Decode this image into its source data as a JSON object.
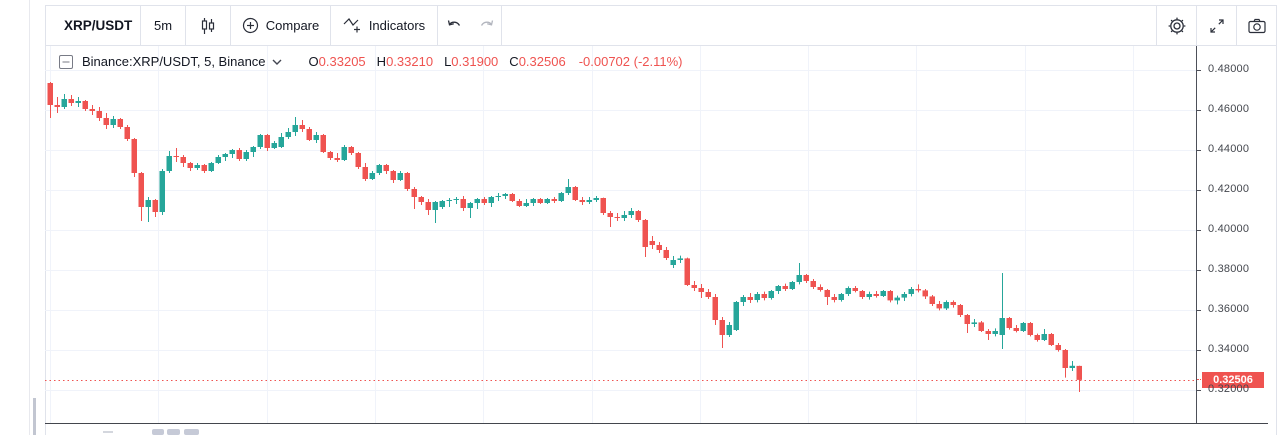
{
  "toolbar": {
    "symbol": "XRP/USDT",
    "interval": "5m",
    "compare_label": "Compare",
    "indicators_label": "Indicators"
  },
  "legend": {
    "title": "Binance:XRP/USDT, 5, Binance",
    "ohlc": [
      {
        "label": "O",
        "value": "0.33205"
      },
      {
        "label": "H",
        "value": "0.33210"
      },
      {
        "label": "L",
        "value": "0.31900"
      },
      {
        "label": "C",
        "value": "0.32506"
      }
    ],
    "change": "-0.00702 (-2.11%)"
  },
  "price_axis": {
    "labels": [
      "0.48000",
      "0.46000",
      "0.44000",
      "0.42000",
      "0.40000",
      "0.38000",
      "0.36000",
      "0.34000",
      "0.32000"
    ],
    "label_prices": [
      0.48,
      0.46,
      0.44,
      0.42,
      0.4,
      0.38,
      0.36,
      0.34,
      0.32
    ],
    "current_price_label": "0.32506"
  },
  "colors": {
    "up": "#26a69a",
    "down": "#ef5350",
    "accent_red": "#ef5350",
    "grid": "#f0f3fa",
    "border": "#e0e3eb",
    "axis_line": "#4d5059",
    "text_dark": "#131722",
    "text_gray": "#44474e"
  },
  "chart_data": {
    "type": "candlestick",
    "symbol": "Binance:XRP/USDT",
    "exchange": "Binance",
    "interval_minutes": 5,
    "last_price": 0.32506,
    "y_axis_range": [
      0.3155,
      0.4925
    ],
    "gridline_prices": [
      0.48,
      0.46,
      0.44,
      0.42,
      0.4,
      0.38,
      0.36,
      0.34,
      0.32
    ],
    "legend_ohlc": {
      "open": 0.33205,
      "high": 0.3321,
      "low": 0.319,
      "close": 0.32506,
      "change": -0.00702,
      "change_pct": -2.11
    },
    "candles": [
      [
        0.4735,
        0.474,
        0.456,
        0.4625
      ],
      [
        0.4625,
        0.4665,
        0.4585,
        0.4615
      ],
      [
        0.4615,
        0.468,
        0.4605,
        0.4655
      ],
      [
        0.4655,
        0.4675,
        0.462,
        0.4635
      ],
      [
        0.4635,
        0.4665,
        0.4615,
        0.4645
      ],
      [
        0.4645,
        0.465,
        0.4595,
        0.4605
      ],
      [
        0.4605,
        0.4625,
        0.4575,
        0.4595
      ],
      [
        0.4595,
        0.4615,
        0.4545,
        0.456
      ],
      [
        0.456,
        0.4585,
        0.4505,
        0.4525
      ],
      [
        0.4525,
        0.457,
        0.451,
        0.4555
      ],
      [
        0.4555,
        0.456,
        0.4505,
        0.4515
      ],
      [
        0.4515,
        0.4525,
        0.4445,
        0.4455
      ],
      [
        0.4455,
        0.446,
        0.4265,
        0.4285
      ],
      [
        0.4285,
        0.429,
        0.4045,
        0.4115
      ],
      [
        0.4115,
        0.4165,
        0.404,
        0.415
      ],
      [
        0.415,
        0.4155,
        0.4065,
        0.409
      ],
      [
        0.409,
        0.4305,
        0.4075,
        0.4295
      ],
      [
        0.4295,
        0.4395,
        0.4285,
        0.437
      ],
      [
        0.437,
        0.441,
        0.434,
        0.4365
      ],
      [
        0.4365,
        0.4375,
        0.4315,
        0.4335
      ],
      [
        0.4335,
        0.434,
        0.4295,
        0.431
      ],
      [
        0.431,
        0.4335,
        0.43,
        0.4325
      ],
      [
        0.4325,
        0.433,
        0.4285,
        0.4295
      ],
      [
        0.4295,
        0.434,
        0.429,
        0.4335
      ],
      [
        0.4335,
        0.4375,
        0.433,
        0.4365
      ],
      [
        0.4365,
        0.4385,
        0.4345,
        0.438
      ],
      [
        0.438,
        0.4405,
        0.436,
        0.44
      ],
      [
        0.44,
        0.441,
        0.4345,
        0.4355
      ],
      [
        0.4355,
        0.44,
        0.4345,
        0.439
      ],
      [
        0.439,
        0.442,
        0.4365,
        0.4415
      ],
      [
        0.4415,
        0.448,
        0.4405,
        0.4475
      ],
      [
        0.4475,
        0.448,
        0.4395,
        0.441
      ],
      [
        0.441,
        0.4445,
        0.4405,
        0.4435
      ],
      [
        0.4415,
        0.4485,
        0.441,
        0.4465
      ],
      [
        0.4465,
        0.451,
        0.4455,
        0.449
      ],
      [
        0.449,
        0.4565,
        0.447,
        0.4525
      ],
      [
        0.4525,
        0.455,
        0.449,
        0.4505
      ],
      [
        0.4505,
        0.4515,
        0.4445,
        0.445
      ],
      [
        0.445,
        0.449,
        0.4435,
        0.4475
      ],
      [
        0.4475,
        0.448,
        0.4385,
        0.439
      ],
      [
        0.439,
        0.4395,
        0.435,
        0.436
      ],
      [
        0.436,
        0.4385,
        0.434,
        0.435
      ],
      [
        0.435,
        0.4425,
        0.4345,
        0.4415
      ],
      [
        0.4415,
        0.442,
        0.4375,
        0.4385
      ],
      [
        0.4385,
        0.439,
        0.4305,
        0.4315
      ],
      [
        0.4315,
        0.4335,
        0.4245,
        0.4255
      ],
      [
        0.4255,
        0.4295,
        0.425,
        0.4285
      ],
      [
        0.4285,
        0.433,
        0.4275,
        0.4325
      ],
      [
        0.4325,
        0.433,
        0.428,
        0.4295
      ],
      [
        0.4295,
        0.43,
        0.4235,
        0.425
      ],
      [
        0.425,
        0.4295,
        0.4245,
        0.4285
      ],
      [
        0.4285,
        0.429,
        0.4195,
        0.4205
      ],
      [
        0.4205,
        0.4215,
        0.4105,
        0.4165
      ],
      [
        0.4165,
        0.417,
        0.4125,
        0.414
      ],
      [
        0.414,
        0.4155,
        0.4075,
        0.41
      ],
      [
        0.41,
        0.4145,
        0.4035,
        0.414
      ],
      [
        0.4115,
        0.415,
        0.4105,
        0.4145
      ],
      [
        0.4145,
        0.416,
        0.4115,
        0.415
      ],
      [
        0.415,
        0.4165,
        0.413,
        0.4155
      ],
      [
        0.4155,
        0.417,
        0.4095,
        0.411
      ],
      [
        0.411,
        0.414,
        0.406,
        0.4135
      ],
      [
        0.4135,
        0.416,
        0.4105,
        0.4155
      ],
      [
        0.4155,
        0.4165,
        0.4125,
        0.4135
      ],
      [
        0.4135,
        0.417,
        0.4115,
        0.4165
      ],
      [
        0.4165,
        0.4185,
        0.4145,
        0.417
      ],
      [
        0.417,
        0.4185,
        0.4155,
        0.418
      ],
      [
        0.418,
        0.4185,
        0.414,
        0.4145
      ],
      [
        0.4145,
        0.4155,
        0.4115,
        0.412
      ],
      [
        0.412,
        0.4155,
        0.4115,
        0.4135
      ],
      [
        0.4135,
        0.416,
        0.412,
        0.4155
      ],
      [
        0.4155,
        0.416,
        0.413,
        0.4135
      ],
      [
        0.4135,
        0.416,
        0.413,
        0.4155
      ],
      [
        0.4155,
        0.4165,
        0.4135,
        0.4145
      ],
      [
        0.4145,
        0.419,
        0.414,
        0.4185
      ],
      [
        0.4185,
        0.4255,
        0.4175,
        0.4215
      ],
      [
        0.4215,
        0.422,
        0.4145,
        0.415
      ],
      [
        0.415,
        0.4165,
        0.4125,
        0.414
      ],
      [
        0.414,
        0.4165,
        0.413,
        0.415
      ],
      [
        0.415,
        0.417,
        0.414,
        0.416
      ],
      [
        0.416,
        0.4162,
        0.4075,
        0.4085
      ],
      [
        0.4085,
        0.4095,
        0.4015,
        0.4065
      ],
      [
        0.4065,
        0.4085,
        0.4045,
        0.406
      ],
      [
        0.406,
        0.4095,
        0.4045,
        0.4075
      ],
      [
        0.4075,
        0.411,
        0.406,
        0.4095
      ],
      [
        0.4095,
        0.41,
        0.404,
        0.405
      ],
      [
        0.405,
        0.4055,
        0.3865,
        0.3915
      ],
      [
        0.3945,
        0.397,
        0.3905,
        0.3925
      ],
      [
        0.3925,
        0.394,
        0.3885,
        0.39
      ],
      [
        0.39,
        0.3915,
        0.385,
        0.386
      ],
      [
        0.3825,
        0.387,
        0.381,
        0.385
      ],
      [
        0.385,
        0.3872,
        0.3835,
        0.3858
      ],
      [
        0.3858,
        0.3862,
        0.372,
        0.3725
      ],
      [
        0.3725,
        0.3745,
        0.3695,
        0.371
      ],
      [
        0.371,
        0.373,
        0.366,
        0.369
      ],
      [
        0.369,
        0.3705,
        0.3655,
        0.3665
      ],
      [
        0.3665,
        0.368,
        0.3525,
        0.355
      ],
      [
        0.355,
        0.3565,
        0.341,
        0.3475
      ],
      [
        0.3475,
        0.354,
        0.3465,
        0.3525
      ],
      [
        0.35,
        0.3645,
        0.3495,
        0.364
      ],
      [
        0.364,
        0.3675,
        0.362,
        0.3665
      ],
      [
        0.3665,
        0.3685,
        0.3635,
        0.365
      ],
      [
        0.365,
        0.369,
        0.3638,
        0.368
      ],
      [
        0.368,
        0.3692,
        0.3648,
        0.366
      ],
      [
        0.366,
        0.37,
        0.3652,
        0.3695
      ],
      [
        0.3695,
        0.3725,
        0.368,
        0.372
      ],
      [
        0.372,
        0.3732,
        0.3695,
        0.3705
      ],
      [
        0.3705,
        0.3745,
        0.37,
        0.374
      ],
      [
        0.374,
        0.3835,
        0.3728,
        0.3775
      ],
      [
        0.3775,
        0.378,
        0.3735,
        0.3745
      ],
      [
        0.3745,
        0.3755,
        0.3705,
        0.3715
      ],
      [
        0.3715,
        0.3728,
        0.3692,
        0.37
      ],
      [
        0.37,
        0.3705,
        0.3625,
        0.3665
      ],
      [
        0.3665,
        0.368,
        0.3638,
        0.365
      ],
      [
        0.365,
        0.3685,
        0.3642,
        0.368
      ],
      [
        0.368,
        0.3718,
        0.367,
        0.371
      ],
      [
        0.371,
        0.372,
        0.3688,
        0.3695
      ],
      [
        0.3695,
        0.37,
        0.3655,
        0.3665
      ],
      [
        0.3665,
        0.3692,
        0.3652,
        0.368
      ],
      [
        0.368,
        0.3695,
        0.3662,
        0.367
      ],
      [
        0.367,
        0.37,
        0.3665,
        0.3695
      ],
      [
        0.3695,
        0.37,
        0.3638,
        0.3648
      ],
      [
        0.3648,
        0.3672,
        0.3628,
        0.3662
      ],
      [
        0.3662,
        0.369,
        0.3645,
        0.368
      ],
      [
        0.368,
        0.3715,
        0.3668,
        0.3705
      ],
      [
        0.3705,
        0.3728,
        0.3688,
        0.3698
      ],
      [
        0.3698,
        0.3705,
        0.3655,
        0.3668
      ],
      [
        0.3668,
        0.3675,
        0.362,
        0.363
      ],
      [
        0.363,
        0.3645,
        0.3598,
        0.3608
      ],
      [
        0.3608,
        0.3648,
        0.36,
        0.364
      ],
      [
        0.364,
        0.3648,
        0.3612,
        0.3625
      ],
      [
        0.3625,
        0.363,
        0.3565,
        0.3575
      ],
      [
        0.3575,
        0.358,
        0.3485,
        0.353
      ],
      [
        0.353,
        0.3555,
        0.3515,
        0.3538
      ],
      [
        0.3538,
        0.3545,
        0.349,
        0.3495
      ],
      [
        0.3495,
        0.3505,
        0.345,
        0.348
      ],
      [
        0.348,
        0.3508,
        0.3468,
        0.3495
      ],
      [
        0.3475,
        0.3785,
        0.3405,
        0.356
      ],
      [
        0.356,
        0.3565,
        0.3502,
        0.351
      ],
      [
        0.351,
        0.3525,
        0.3488,
        0.3495
      ],
      [
        0.3495,
        0.354,
        0.349,
        0.3535
      ],
      [
        0.3535,
        0.354,
        0.3468,
        0.3475
      ],
      [
        0.3475,
        0.3482,
        0.3442,
        0.345
      ],
      [
        0.345,
        0.3505,
        0.3445,
        0.348
      ],
      [
        0.348,
        0.3485,
        0.342,
        0.3425
      ],
      [
        0.3425,
        0.3435,
        0.3392,
        0.34
      ],
      [
        0.34,
        0.3405,
        0.3262,
        0.331
      ],
      [
        0.331,
        0.3345,
        0.3295,
        0.3321
      ],
      [
        0.33205,
        0.3321,
        0.319,
        0.32506
      ]
    ]
  }
}
